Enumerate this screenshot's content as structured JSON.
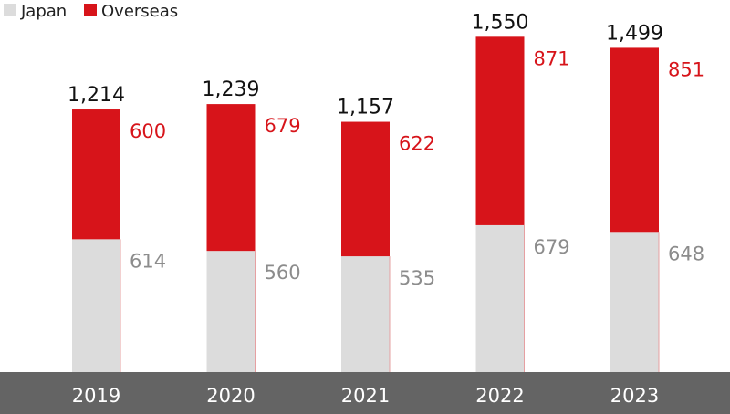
{
  "chart_data": {
    "type": "bar",
    "stacked": true,
    "categories": [
      "2019",
      "2020",
      "2021",
      "2022",
      "2023"
    ],
    "series": [
      {
        "name": "Japan",
        "values": [
          614,
          560,
          535,
          679,
          648
        ],
        "labels": [
          "614",
          "560",
          "535",
          "679",
          "648"
        ]
      },
      {
        "name": "Overseas",
        "values": [
          600,
          679,
          622,
          871,
          851
        ],
        "labels": [
          "600",
          "679",
          "622",
          "871",
          "851"
        ]
      }
    ],
    "totals": [
      1214,
      1239,
      1157,
      1550,
      1499
    ],
    "total_labels": [
      "1,214",
      "1,239",
      "1,157",
      "1,550",
      "1,499"
    ],
    "legend_position": "top-left",
    "ylim": [
      0,
      1720
    ],
    "colors": {
      "japan": "#dcdcdc",
      "overseas": "#d7141a",
      "japan_text": "#8c8c8c",
      "overseas_text": "#d7141a",
      "axis_band": "#646464",
      "category_text": "#ffffff"
    }
  }
}
